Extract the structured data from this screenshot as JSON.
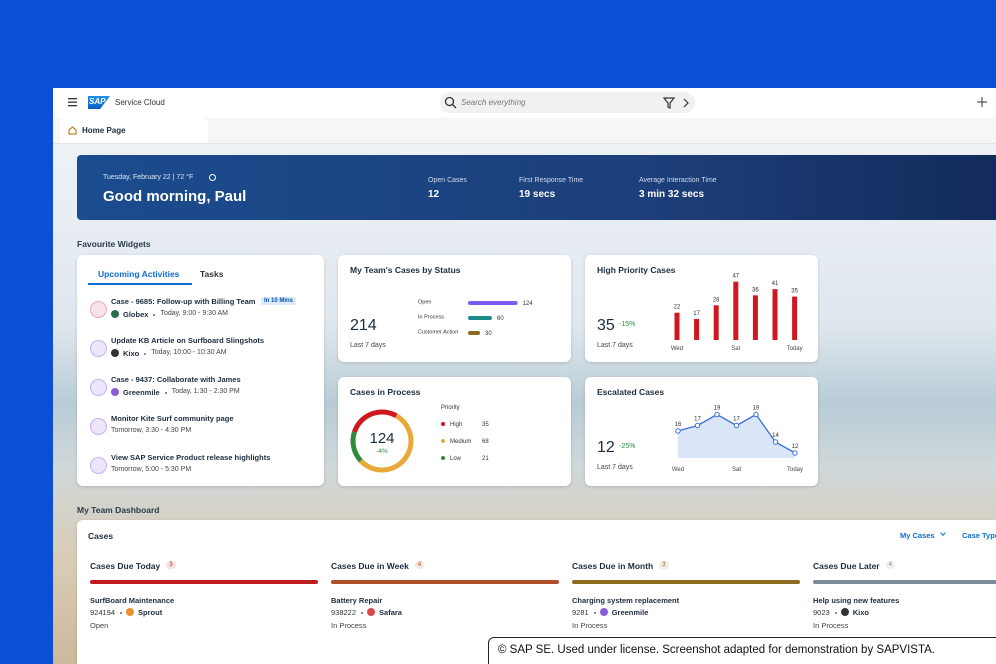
{
  "header": {
    "logo": "SAP",
    "product": "Service Cloud",
    "search_placeholder": "Search everything"
  },
  "tab": "Home Page",
  "banner": {
    "date": "Tuesday, February 22 | 72 °F",
    "greeting": "Good morning, Paul",
    "kpis": [
      {
        "label": "Open Cases",
        "value": "12"
      },
      {
        "label": "First Response Time",
        "value": "19 secs"
      },
      {
        "label": "Average Interaction Time",
        "value": "3 min 32 secs"
      }
    ]
  },
  "favourites_title": "Favourite Widgets",
  "activities": {
    "tabs": [
      "Upcoming Activities",
      "Tasks"
    ],
    "items": [
      {
        "title": "Case - 9685: Follow-up with Billing Team",
        "badge": "In 10 Mins",
        "org": "Globex",
        "time": "Today, 9:00 - 9:30 AM"
      },
      {
        "title": "Update KB Article on Surfboard Slingshots",
        "org": "Kixo",
        "time": "Today, 10:00 - 10:30 AM"
      },
      {
        "title": "Case - 9437: Collaborate with James",
        "org": "Greenmile",
        "time": "Today, 1:30 - 2:30 PM"
      },
      {
        "title": "Monitor Kite Surf community page",
        "time": "Tomorrow, 3:30 - 4:30 PM"
      },
      {
        "title": "View SAP Service Product release highlights",
        "time": "Tomorrow, 5:00 - 5:30 PM"
      }
    ]
  },
  "status_widget": {
    "title": "My Team's Cases by Status",
    "total": 214,
    "period": "Last 7 days",
    "categories": [
      "Open",
      "In Process",
      "Customer Action"
    ],
    "values": [
      124,
      60,
      30
    ],
    "colors": [
      "#7b5cf0",
      "#1f8a8a",
      "#8a6a1e"
    ]
  },
  "high_priority": {
    "title": "High Priority Cases",
    "total": 35,
    "change": "-15%",
    "period": "Last 7 days",
    "values": [
      22,
      17,
      28,
      47,
      36,
      41,
      35
    ],
    "x_labels": [
      "Wed",
      null,
      null,
      "Sat",
      null,
      null,
      "Today"
    ],
    "color": "#d0171f"
  },
  "in_process": {
    "title": "Cases in Process",
    "total": 124,
    "change": "-4%",
    "legend_title": "Priority",
    "categories": [
      "High",
      "Medium",
      "Low"
    ],
    "values": [
      35,
      68,
      21
    ],
    "colors": [
      "#d0171f",
      "#e8a93a",
      "#2e8b3a"
    ]
  },
  "escalated": {
    "title": "Escalated Cases",
    "total": 12,
    "change": "-25%",
    "period": "Last 7 days",
    "values": [
      16,
      17,
      19,
      17,
      19,
      14,
      12
    ],
    "x_labels": [
      "Wed",
      null,
      null,
      "Sat",
      null,
      null,
      "Today"
    ],
    "color": "#3a6fd8"
  },
  "dashboard_title": "My Team Dashboard",
  "cases_panel": {
    "title": "Cases",
    "filters": [
      "My Cases",
      "Case Type"
    ],
    "columns": [
      {
        "title": "Cases Due Today",
        "count": 3,
        "color": "#bf1b22",
        "case": {
          "title": "SurfBoard Maintenance",
          "id": "924194",
          "org": "Sprout",
          "status": "Open"
        }
      },
      {
        "title": "Cases Due in Week",
        "count": 4,
        "color": "#b0502a",
        "case": {
          "title": "Battery Repair",
          "id": "938222",
          "org": "Safara",
          "status": "In Process"
        }
      },
      {
        "title": "Cases Due in Month",
        "count": 3,
        "color": "#8a6d1e",
        "case": {
          "title": "Charging system replacement",
          "id": "9281",
          "org": "Greenmile",
          "status": "In Process"
        }
      },
      {
        "title": "Cases Due Later",
        "count": 4,
        "color": "#7d8a99",
        "case": {
          "title": "Help using new features",
          "id": "9023",
          "org": "Kixo",
          "status": "In Process"
        }
      }
    ]
  },
  "footer": "© SAP SE. Used under license. Screenshot adapted for demonstration by SAPVISTA."
}
